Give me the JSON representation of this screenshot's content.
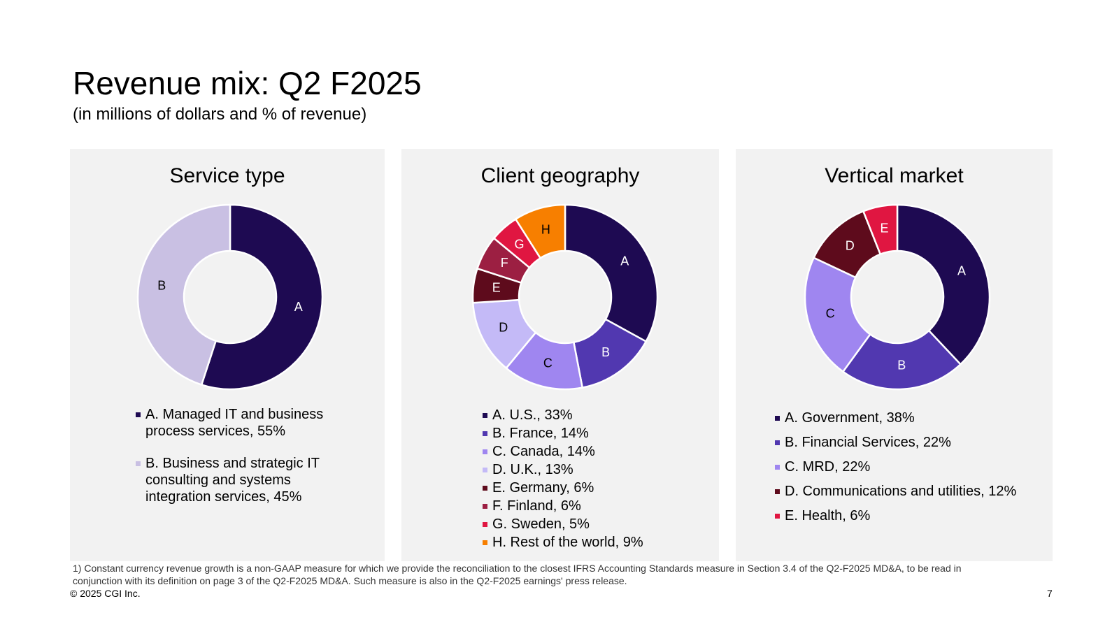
{
  "header": {
    "title": "Revenue mix: Q2 F2025",
    "subtitle": "(in millions of dollars and % of revenue)"
  },
  "chart_data": [
    {
      "type": "pie",
      "title": "Service type",
      "labels": [
        "A",
        "B"
      ],
      "legend": [
        "A. Managed IT and business process services, 55%",
        "B. Business and strategic IT consulting and systems integration services, 45%"
      ],
      "values": [
        55,
        45
      ],
      "colors": [
        "#1e0a52",
        "#c9c0e3"
      ],
      "label_colors": [
        "#ffffff",
        "#000000"
      ]
    },
    {
      "type": "pie",
      "title": "Client geography",
      "labels": [
        "A",
        "B",
        "C",
        "D",
        "E",
        "F",
        "G",
        "H"
      ],
      "legend": [
        "A. U.S., 33%",
        "B. France, 14%",
        "C. Canada, 14%",
        "D. U.K., 13%",
        "E. Germany, 6%",
        "F. Finland, 6%",
        "G. Sweden, 5%",
        "H. Rest of the world, 9%"
      ],
      "values": [
        33,
        14,
        14,
        13,
        6,
        6,
        5,
        9
      ],
      "colors": [
        "#1e0a52",
        "#5138b0",
        "#9f86f0",
        "#c4baf7",
        "#5e0b1c",
        "#9c1f42",
        "#e01641",
        "#f77f00"
      ],
      "label_colors": [
        "#ffffff",
        "#ffffff",
        "#000000",
        "#000000",
        "#ffffff",
        "#ffffff",
        "#ffffff",
        "#000000"
      ]
    },
    {
      "type": "pie",
      "title": "Vertical market",
      "labels": [
        "A",
        "B",
        "C",
        "D",
        "E"
      ],
      "legend": [
        "A. Government, 38%",
        "B. Financial Services, 22%",
        "C. MRD, 22%",
        "D. Communications and utilities, 12%",
        "E. Health, 6%"
      ],
      "values": [
        38,
        22,
        22,
        12,
        6
      ],
      "colors": [
        "#1e0a52",
        "#5138b0",
        "#9f86f0",
        "#5e0b1c",
        "#e01641"
      ],
      "label_colors": [
        "#ffffff",
        "#ffffff",
        "#000000",
        "#ffffff",
        "#ffffff"
      ]
    }
  ],
  "footer": {
    "note": "1) Constant currency revenue growth is a non-GAAP measure for which we provide the reconciliation to the closest IFRS Accounting Standards measure in Section 3.4 of the Q2-F2025 MD&A, to be read in conjunction with its definition on page 3 of the Q2-F2025 MD&A. Such measure is also in the Q2-F2025 earnings' press release.",
    "copyright": "© 2025 CGI Inc.",
    "page_number": "7"
  }
}
